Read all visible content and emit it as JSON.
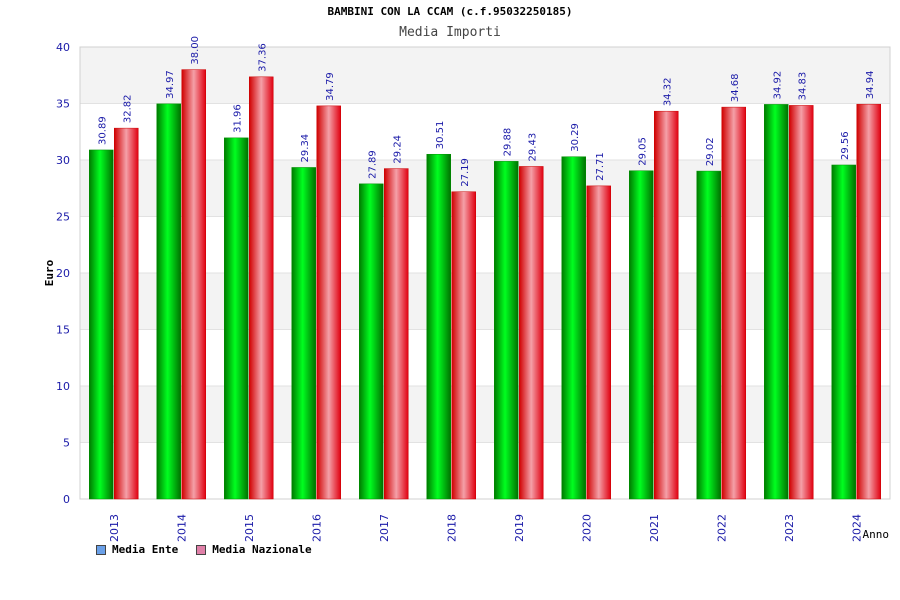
{
  "colors": {
    "ente": "#00b000",
    "nazionale": "#ee1111",
    "legend_ente": "#6aa0e8",
    "legend_nazionale": "#e080a8",
    "axis_label": "#1a1aa8"
  },
  "chart_data": {
    "type": "bar",
    "title": "BAMBINI CON LA CCAM (c.f.95032250185)",
    "subtitle": "Media Importi",
    "xlabel": "Anno",
    "ylabel": "Euro",
    "ylim": [
      0,
      40
    ],
    "yticks": [
      "0",
      "5",
      "10",
      "15",
      "20",
      "25",
      "30",
      "35",
      "40"
    ],
    "grid": true,
    "legend_position": "bottom-left",
    "categories": [
      "2013",
      "2014",
      "2015",
      "2016",
      "2017",
      "2018",
      "2019",
      "2020",
      "2021",
      "2022",
      "2023",
      "2024"
    ],
    "series": [
      {
        "name": "Media Ente",
        "values": [
          30.89,
          34.97,
          31.96,
          29.34,
          27.89,
          30.51,
          29.88,
          30.29,
          29.05,
          29.02,
          34.92,
          29.56
        ],
        "labels": [
          "30.89",
          "34.97",
          "31.96",
          "29.34",
          "27.89",
          "30.51",
          "29.88",
          "30.29",
          "29.05",
          "29.02",
          "34.92",
          "29.56"
        ]
      },
      {
        "name": "Media Nazionale",
        "values": [
          32.82,
          38.0,
          37.36,
          34.79,
          29.24,
          27.19,
          29.43,
          27.71,
          34.32,
          34.68,
          34.83,
          34.94
        ],
        "labels": [
          "32.82",
          "38.00",
          "37.36",
          "34.79",
          "29.24",
          "27.19",
          "29.43",
          "27.71",
          "34.32",
          "34.68",
          "34.83",
          "34.94"
        ]
      }
    ]
  }
}
